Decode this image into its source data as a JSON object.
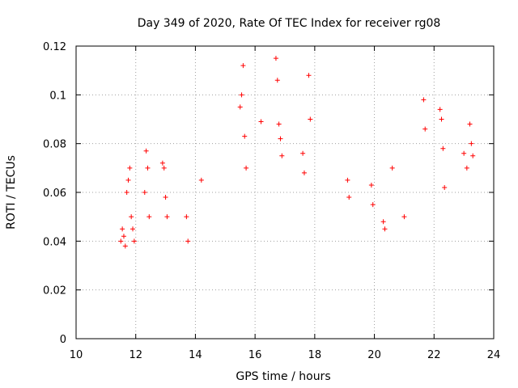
{
  "chart_data": {
    "type": "scatter",
    "title": "Day 349 of 2020, Rate Of TEC Index for receiver rg08",
    "xlabel": "GPS time / hours",
    "ylabel": "ROTI / TECUs",
    "xlim": [
      10,
      24
    ],
    "ylim": [
      0,
      0.12
    ],
    "x_ticks": [
      10,
      12,
      14,
      16,
      18,
      20,
      22,
      24
    ],
    "y_ticks": [
      0,
      0.02,
      0.04,
      0.06,
      0.08,
      0.1,
      0.12
    ],
    "x_tick_labels": [
      "10",
      "12",
      "14",
      "16",
      "18",
      "20",
      "22",
      "24"
    ],
    "y_tick_labels": [
      "0",
      "0.02",
      "0.04",
      "0.06",
      "0.08",
      "0.1",
      "0.12"
    ],
    "grid": true,
    "marker": "plus",
    "colors": {
      "series": "#ff0000",
      "grid": "#a0a0a0"
    },
    "series": [
      {
        "x": [
          11.5,
          11.55,
          11.6,
          11.65,
          11.7,
          11.75,
          11.8,
          11.85,
          11.9,
          11.95,
          12.3,
          12.35,
          12.4,
          12.45,
          12.9,
          12.95,
          13.0,
          13.05,
          13.7,
          13.75,
          14.2,
          15.5,
          15.55,
          15.6,
          15.65,
          15.7,
          16.2,
          16.7,
          16.75,
          16.8,
          16.85,
          16.9,
          17.6,
          17.65,
          17.8,
          17.85,
          19.1,
          19.15,
          19.9,
          19.95,
          20.3,
          20.35,
          20.6,
          21.0,
          21.65,
          21.7,
          22.2,
          22.25,
          22.3,
          22.35,
          23.0,
          23.1,
          23.2,
          23.25,
          23.3
        ],
        "y": [
          0.04,
          0.045,
          0.042,
          0.038,
          0.06,
          0.065,
          0.07,
          0.05,
          0.045,
          0.04,
          0.06,
          0.077,
          0.07,
          0.05,
          0.072,
          0.07,
          0.058,
          0.05,
          0.05,
          0.04,
          0.065,
          0.095,
          0.1,
          0.112,
          0.083,
          0.07,
          0.089,
          0.115,
          0.106,
          0.088,
          0.082,
          0.075,
          0.076,
          0.068,
          0.108,
          0.09,
          0.065,
          0.058,
          0.063,
          0.055,
          0.048,
          0.045,
          0.07,
          0.05,
          0.098,
          0.086,
          0.094,
          0.09,
          0.078,
          0.062,
          0.076,
          0.07,
          0.088,
          0.08,
          0.075
        ]
      }
    ]
  }
}
